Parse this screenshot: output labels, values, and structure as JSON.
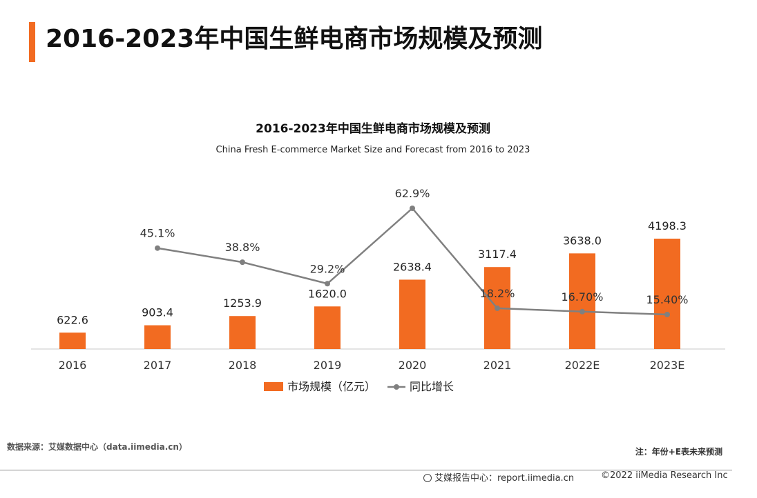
{
  "header": {
    "title": "2016-2023年中国生鲜电商市场规模及预测"
  },
  "chart_data": {
    "type": "bar",
    "title": "2016-2023年中国生鲜电商市场规模及预测",
    "subtitle": "China Fresh E-commerce Market Size and Forecast from 2016 to 2023",
    "categories": [
      "2016",
      "2017",
      "2018",
      "2019",
      "2020",
      "2021",
      "2022E",
      "2023E"
    ],
    "series": [
      {
        "name": "市场规模（亿元）",
        "type": "bar",
        "color": "#f26b21",
        "values": [
          622.6,
          903.4,
          1253.9,
          1620.0,
          2638.4,
          3117.4,
          3638.0,
          4198.3
        ],
        "labels": [
          "622.6",
          "903.4",
          "1253.9",
          "1620.0",
          "2638.4",
          "3117.4",
          "3638.0",
          "4198.3"
        ]
      },
      {
        "name": "同比增长",
        "type": "line",
        "color": "#808080",
        "values": [
          null,
          45.1,
          38.8,
          29.2,
          62.9,
          18.2,
          16.7,
          15.4
        ],
        "labels": [
          null,
          "45.1%",
          "38.8%",
          "29.2%",
          "62.9%",
          "18.2%",
          "16.70%",
          "15.40%"
        ]
      }
    ],
    "y_range": [
      0,
      4300
    ],
    "y2_range": [
      0,
      65
    ],
    "grid": false,
    "legend_position": "bottom"
  },
  "footer": {
    "source": "数据来源：艾媒数据中心（data.iimedia.cn）",
    "note": "注：年份+E表未来预测",
    "report_site": "艾媒报告中心：report.iimedia.cn",
    "copyright": "©2022  iiMedia Research  Inc"
  }
}
